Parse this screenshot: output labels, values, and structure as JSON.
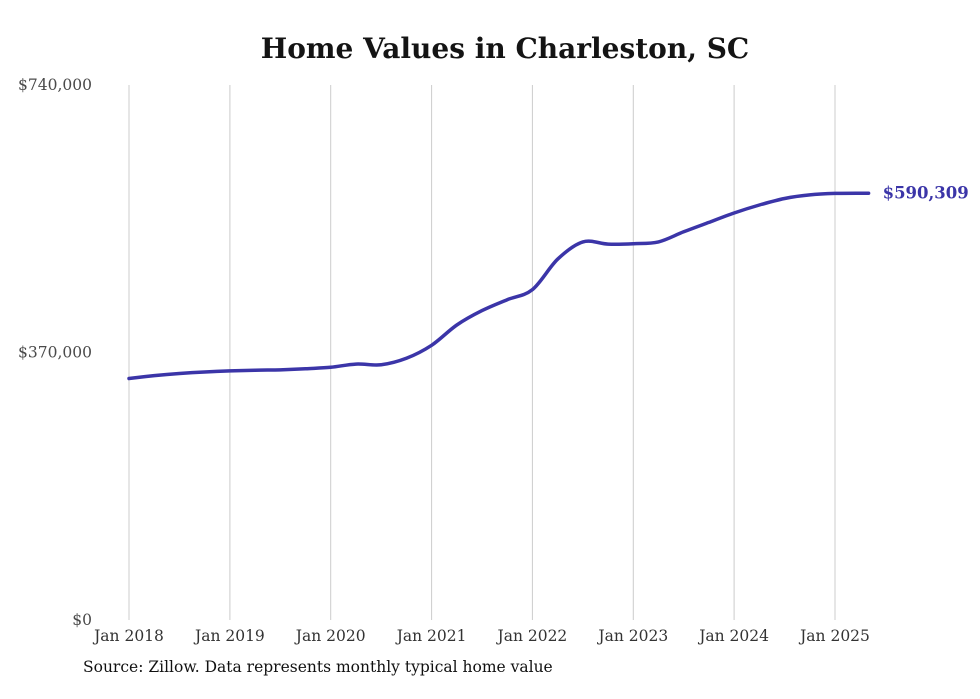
{
  "chart_data": {
    "type": "line",
    "title": "Home Values in Charleston, SC",
    "series_name": "Monthly typical home value",
    "line_color": "#3b35a8",
    "grid_color": "#cccccc",
    "ylim": [
      0,
      740000
    ],
    "x_ticks": [
      "Jan 2018",
      "Jan 2019",
      "Jan 2020",
      "Jan 2021",
      "Jan 2022",
      "Jan 2023",
      "Jan 2024",
      "Jan 2025"
    ],
    "y_ticks": [
      {
        "label": "$0",
        "value": 0
      },
      {
        "label": "$370,000",
        "value": 370000
      },
      {
        "label": "$740,000",
        "value": 740000
      }
    ],
    "points": [
      {
        "date": "2018-01",
        "value": 334000
      },
      {
        "date": "2018-04",
        "value": 338000
      },
      {
        "date": "2018-07",
        "value": 341000
      },
      {
        "date": "2018-10",
        "value": 343000
      },
      {
        "date": "2019-01",
        "value": 344500
      },
      {
        "date": "2019-04",
        "value": 345500
      },
      {
        "date": "2019-07",
        "value": 346000
      },
      {
        "date": "2019-10",
        "value": 347500
      },
      {
        "date": "2020-01",
        "value": 349500
      },
      {
        "date": "2020-04",
        "value": 354000
      },
      {
        "date": "2020-07",
        "value": 353000
      },
      {
        "date": "2020-10",
        "value": 362000
      },
      {
        "date": "2021-01",
        "value": 380000
      },
      {
        "date": "2021-04",
        "value": 408000
      },
      {
        "date": "2021-07",
        "value": 428000
      },
      {
        "date": "2021-10",
        "value": 443000
      },
      {
        "date": "2022-01",
        "value": 457000
      },
      {
        "date": "2022-04",
        "value": 499000
      },
      {
        "date": "2022-07",
        "value": 523000
      },
      {
        "date": "2022-10",
        "value": 520000
      },
      {
        "date": "2023-01",
        "value": 520500
      },
      {
        "date": "2023-04",
        "value": 523000
      },
      {
        "date": "2023-07",
        "value": 537000
      },
      {
        "date": "2023-10",
        "value": 550000
      },
      {
        "date": "2024-01",
        "value": 563000
      },
      {
        "date": "2024-04",
        "value": 574000
      },
      {
        "date": "2024-07",
        "value": 583000
      },
      {
        "date": "2024-10",
        "value": 588000
      },
      {
        "date": "2025-01",
        "value": 590000
      },
      {
        "date": "2025-05",
        "value": 590309
      }
    ],
    "end_label": "$590,309",
    "source_note": "Source: Zillow. Data represents monthly typical home value"
  }
}
